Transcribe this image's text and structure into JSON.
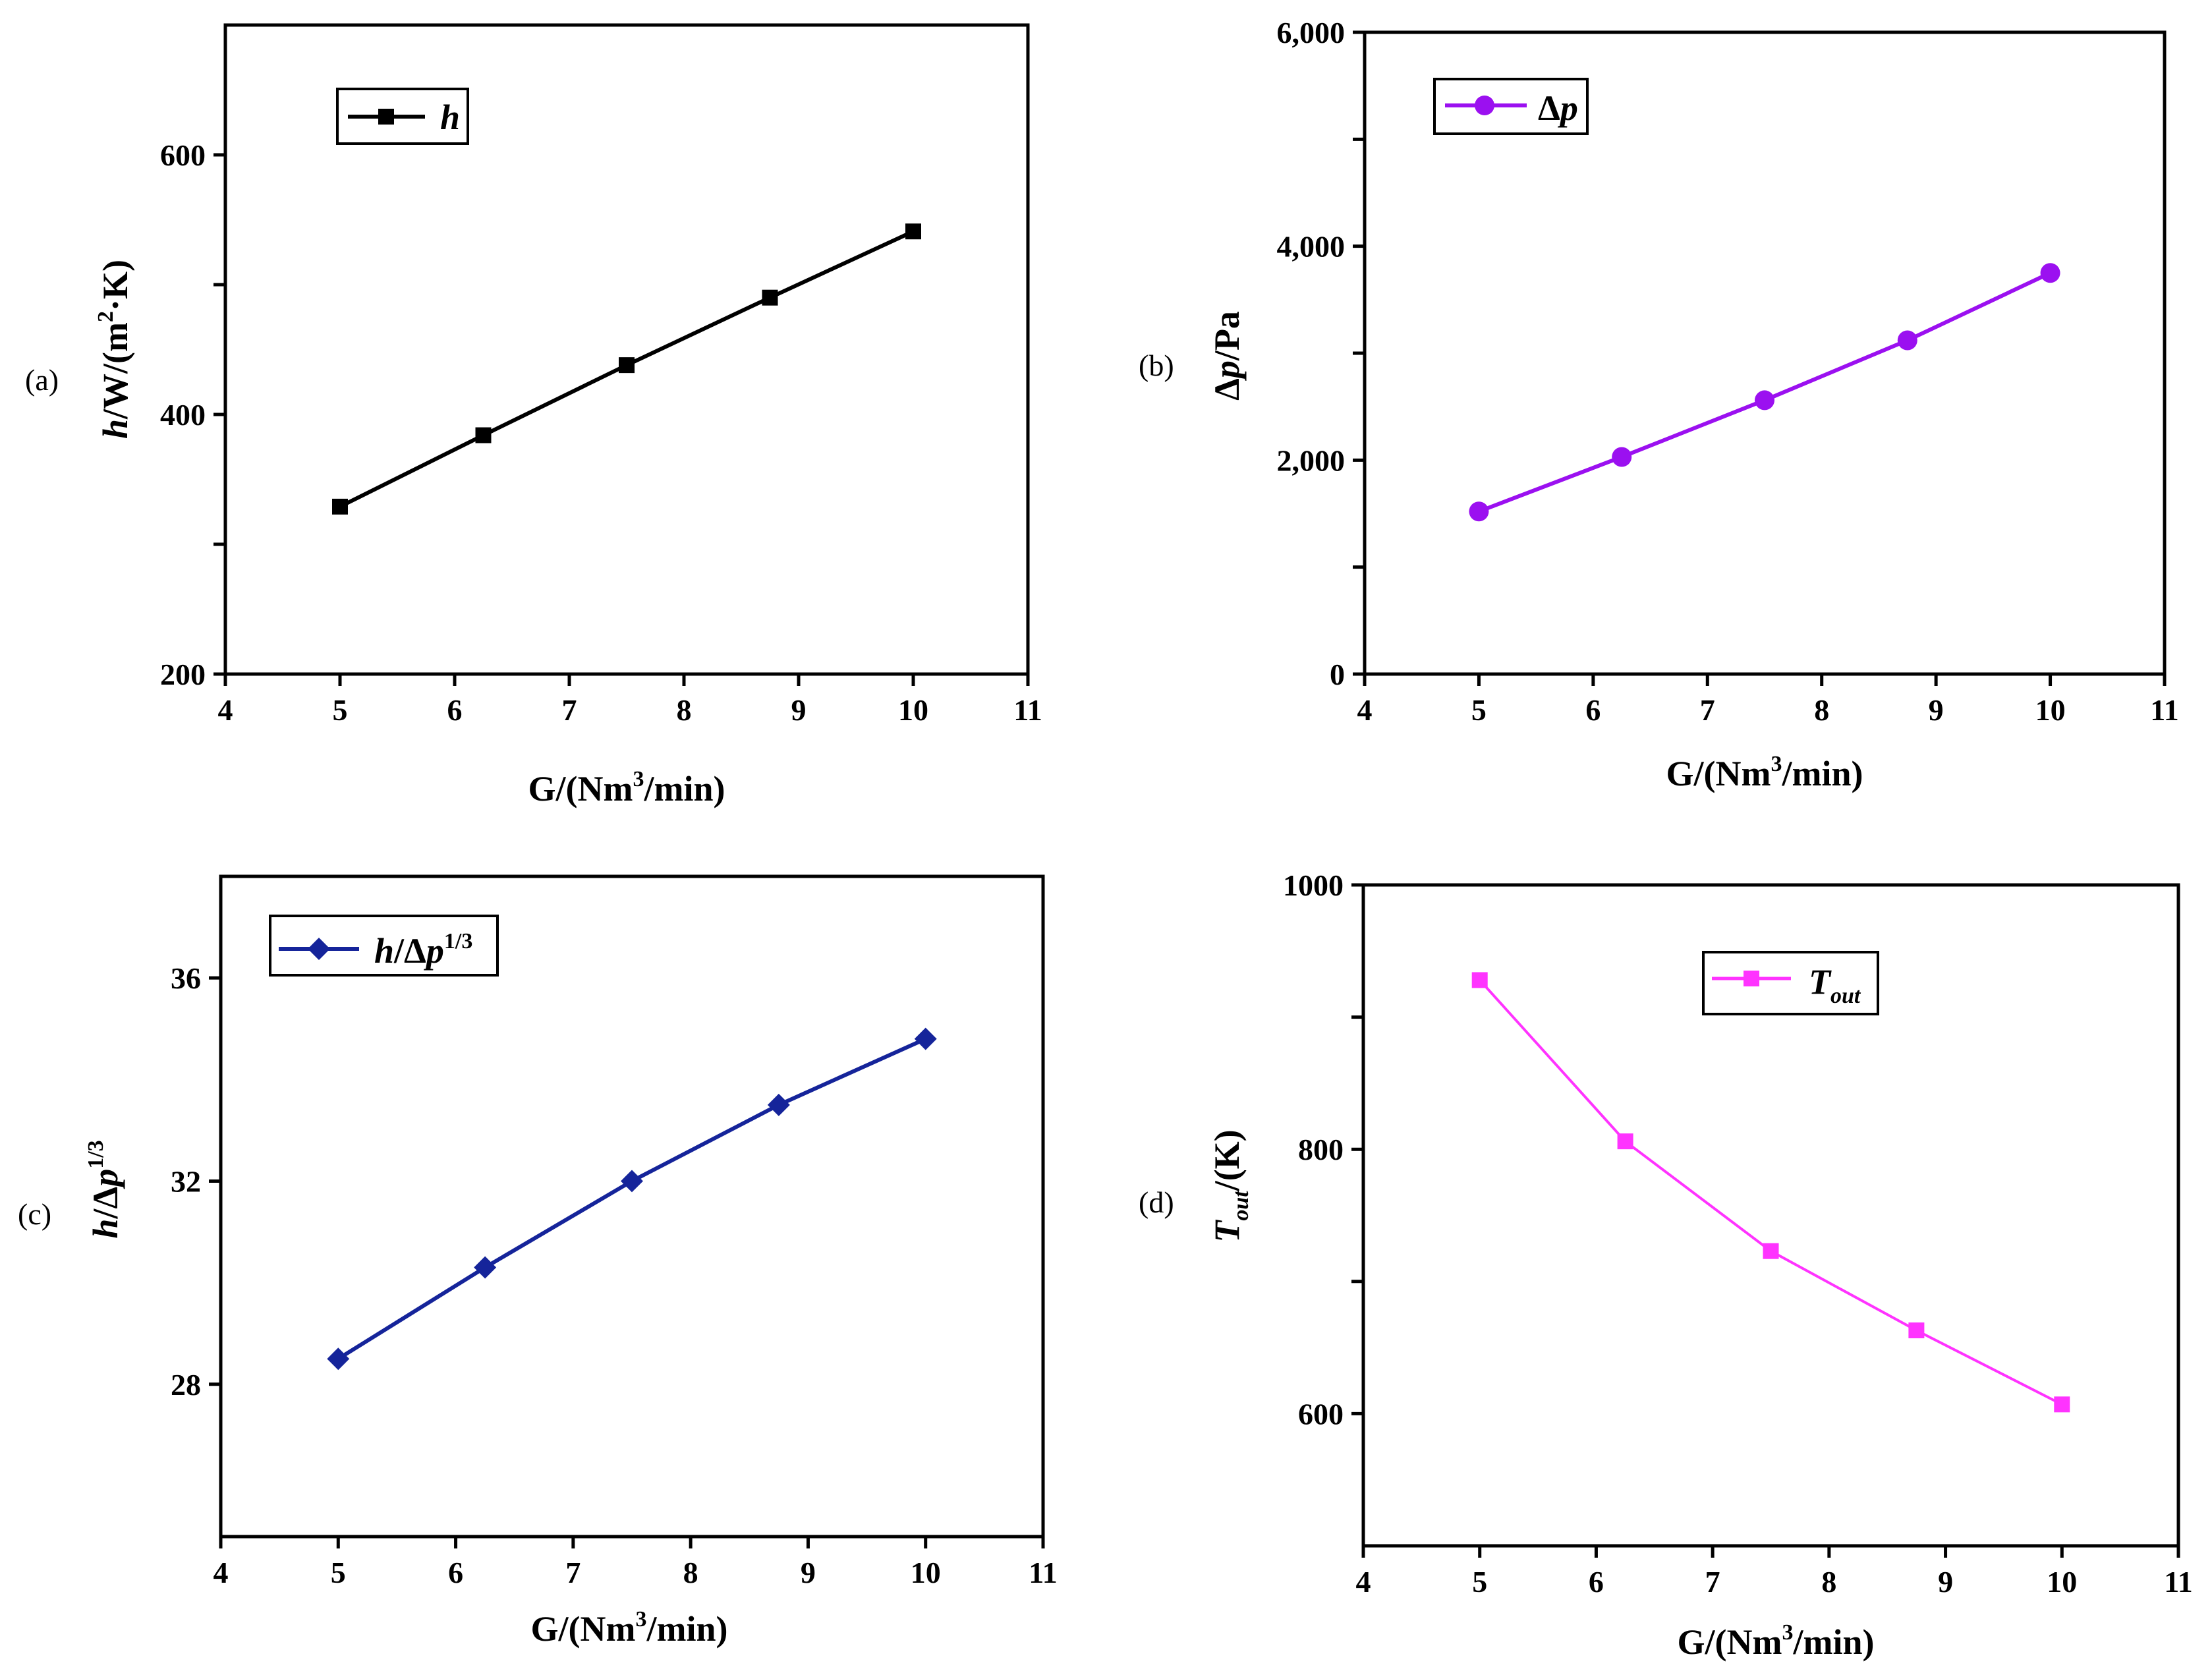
{
  "chart_data": [
    {
      "id": "a",
      "type": "line",
      "panel_label": "(a)",
      "x": [
        5,
        6.25,
        7.5,
        8.75,
        10
      ],
      "series": [
        {
          "name": "h",
          "values": [
            329,
            384,
            438,
            490,
            541
          ],
          "color": "#000000",
          "marker": "square"
        }
      ],
      "xlabel": {
        "pre": "G/(Nm",
        "sup": "3",
        "post": "/min)"
      },
      "ylabel": {
        "italic": "h",
        "pre": "/W/(m",
        "sup": "2",
        "post": "·K)"
      },
      "legend": {
        "italic": "h",
        "position": "top-left"
      },
      "xlim": [
        4,
        11
      ],
      "ylim": [
        200,
        700
      ],
      "xticks": [
        4,
        5,
        6,
        7,
        8,
        9,
        10,
        11
      ],
      "yticks": [
        200,
        300,
        400,
        500,
        600
      ],
      "ytick_labels": [
        "200",
        "",
        "400",
        "",
        "600"
      ]
    },
    {
      "id": "b",
      "type": "line",
      "panel_label": "(b)",
      "x": [
        5,
        6.25,
        7.5,
        8.75,
        10
      ],
      "series": [
        {
          "name": "Δp",
          "values": [
            1520,
            2030,
            2560,
            3120,
            3750
          ],
          "color": "#9b10f0",
          "marker": "circle"
        }
      ],
      "xlabel": {
        "pre": "G/(Nm",
        "sup": "3",
        "post": "/min)"
      },
      "ylabel": {
        "pre": "Δ",
        "italic": "p",
        "post": "/Pa"
      },
      "legend": {
        "pre": "Δ",
        "italic": "p",
        "position": "top-left"
      },
      "xlim": [
        4,
        11
      ],
      "ylim": [
        0,
        6000
      ],
      "xticks": [
        4,
        5,
        6,
        7,
        8,
        9,
        10,
        11
      ],
      "yticks": [
        0,
        1000,
        2000,
        3000,
        4000,
        5000,
        6000
      ],
      "ytick_labels": [
        "0",
        "",
        "2,000",
        "",
        "4,000",
        "",
        "6,000"
      ]
    },
    {
      "id": "c",
      "type": "line",
      "panel_label": "(c)",
      "x": [
        5,
        6.25,
        7.5,
        8.75,
        10
      ],
      "series": [
        {
          "name": "h/Δp^1/3",
          "values": [
            28.5,
            30.3,
            32.0,
            33.5,
            34.8
          ],
          "color": "#15249a",
          "marker": "diamond"
        }
      ],
      "xlabel": {
        "pre": "G/(Nm",
        "sup": "3",
        "post": "/min)"
      },
      "ylabel": {
        "italic": "h",
        "pre": "/Δ",
        "italic2": "p",
        "sup": "1/3"
      },
      "legend": {
        "italic": "h",
        "pre": "/Δ",
        "italic2": "p",
        "sup": "1/3",
        "position": "top-left"
      },
      "xlim": [
        4,
        11
      ],
      "ylim": [
        25,
        38
      ],
      "xticks": [
        4,
        5,
        6,
        7,
        8,
        9,
        10,
        11
      ],
      "yticks": [
        28,
        32,
        36
      ],
      "ytick_labels": [
        "28",
        "32",
        "36"
      ]
    },
    {
      "id": "d",
      "type": "line",
      "panel_label": "(d)",
      "x": [
        5,
        6.25,
        7.5,
        8.75,
        10
      ],
      "series": [
        {
          "name": "Tout",
          "values": [
            928,
            806,
            723,
            663,
            607
          ],
          "color": "#ff33ff",
          "marker": "square"
        }
      ],
      "xlabel": {
        "pre": "G/(Nm",
        "sup": "3",
        "post": "/min)"
      },
      "ylabel": {
        "italic": "T",
        "sub": "out",
        "post": "/(K)"
      },
      "legend": {
        "italic": "T",
        "sub": "out",
        "position": "top-center"
      },
      "xlim": [
        4,
        11
      ],
      "ylim": [
        500,
        1000
      ],
      "xticks": [
        4,
        5,
        6,
        7,
        8,
        9,
        10,
        11
      ],
      "yticks": [
        600,
        700,
        800,
        900,
        1000
      ],
      "ytick_labels": [
        "600",
        "",
        "800",
        "",
        "1000"
      ]
    }
  ]
}
